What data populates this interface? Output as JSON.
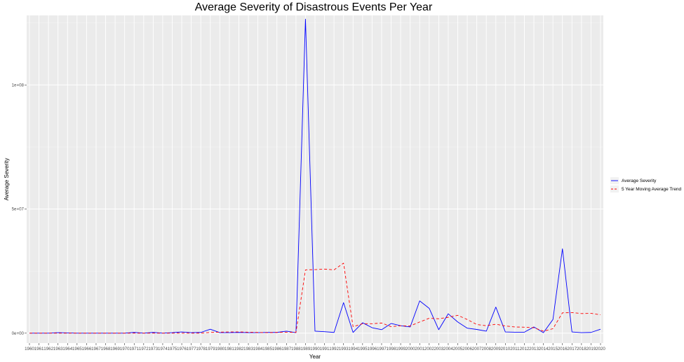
{
  "chart_data": {
    "type": "line",
    "title": "Average Severity of Disastrous Events Per Year",
    "xlabel": "Year",
    "ylabel": "Average Severity",
    "x": [
      1960,
      1961,
      1962,
      1963,
      1964,
      1965,
      1966,
      1967,
      1968,
      1969,
      1970,
      1971,
      1972,
      1973,
      1974,
      1975,
      1976,
      1977,
      1978,
      1979,
      1980,
      1981,
      1982,
      1983,
      1984,
      1985,
      1986,
      1987,
      1988,
      1989,
      1990,
      1991,
      1992,
      1993,
      1994,
      1995,
      1996,
      1997,
      1998,
      1999,
      2000,
      2001,
      2002,
      2003,
      2004,
      2005,
      2006,
      2007,
      2008,
      2009,
      2010,
      2011,
      2012,
      2013,
      2014,
      2015,
      2016,
      2017,
      2018,
      2019,
      2020
    ],
    "ylim": [
      -4000000,
      128000000
    ],
    "yticks": [
      0,
      50000000,
      100000000
    ],
    "ytick_labels": [
      "0e+00",
      "5e+07",
      "1e+08"
    ],
    "grid": true,
    "legend_position": "right",
    "series": [
      {
        "name": "Average Severity",
        "color": "#0000ff",
        "dash": "solid",
        "values": [
          0,
          0,
          0,
          200000,
          100000,
          0,
          0,
          0,
          0,
          0,
          0,
          300000,
          0,
          300000,
          0,
          200000,
          500000,
          200000,
          300000,
          1600000,
          200000,
          200000,
          300000,
          200000,
          200000,
          300000,
          300000,
          800000,
          200000,
          126500000,
          800000,
          600000,
          300000,
          12300000,
          300000,
          4200000,
          2200000,
          1400000,
          3900000,
          3000000,
          2500000,
          13000000,
          10000000,
          1400000,
          7800000,
          4500000,
          2000000,
          1500000,
          800000,
          10500000,
          500000,
          400000,
          400000,
          2500000,
          200000,
          5500000,
          34000000,
          500000,
          200000,
          300000,
          1600000
        ]
      },
      {
        "name": "5 Year Moving Average Trend",
        "color": "#ff0000",
        "dash": "dashed",
        "values": [
          0,
          0,
          0,
          0,
          0,
          0,
          0,
          0,
          0,
          0,
          0,
          0,
          0,
          0,
          0,
          0,
          0,
          0,
          0,
          300000,
          400000,
          500000,
          500000,
          400000,
          300000,
          200000,
          300000,
          400000,
          300000,
          25500000,
          25600000,
          25800000,
          25500000,
          28200000,
          2600000,
          3800000,
          3800000,
          4100000,
          2600000,
          3000000,
          2900000,
          4500000,
          6000000,
          5800000,
          6400000,
          7200000,
          5500000,
          3500000,
          3000000,
          3600000,
          2900000,
          2500000,
          2400000,
          2200000,
          800000,
          1800000,
          8200000,
          8300000,
          7900000,
          8000000,
          7400000
        ]
      }
    ]
  }
}
